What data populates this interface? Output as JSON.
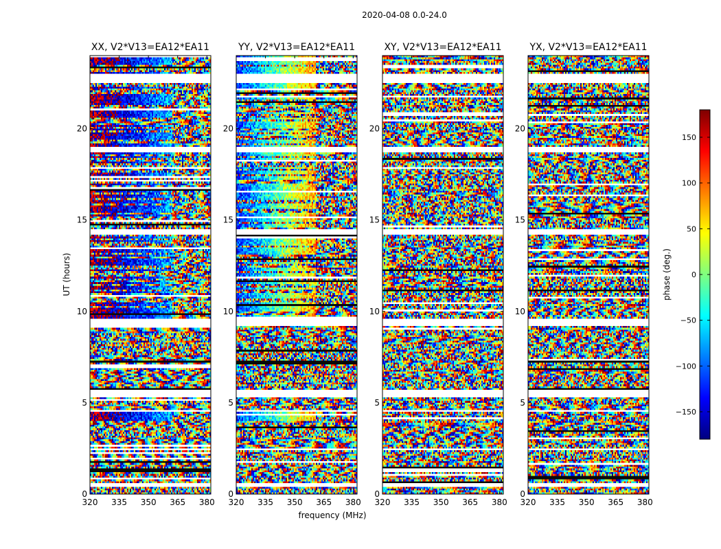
{
  "suptitle": "2020-04-08 0.0-24.0",
  "xlabel": "frequency (MHz)",
  "ylabel": "UT (hours)",
  "colorbar": {
    "label": "phase (deg.)",
    "range": [
      -180,
      180
    ],
    "ticks": [
      150,
      100,
      50,
      0,
      -50,
      -100,
      -150
    ],
    "tick_labels": [
      "150",
      "100",
      "50",
      "0",
      "−50",
      "−100",
      "−150"
    ],
    "colormap": "jet",
    "colors": [
      "#00007f",
      "#0000ff",
      "#007fff",
      "#00ffff",
      "#7fff7f",
      "#ffff00",
      "#ff7f00",
      "#ff0000",
      "#7f0000"
    ]
  },
  "chart_data": [
    {
      "type": "heatmap",
      "title": "XX, V2*V13=EA12*EA11",
      "xlim": [
        320,
        382
      ],
      "ylim": [
        0,
        24
      ],
      "x_ticks": [
        320,
        335,
        350,
        365,
        380
      ],
      "x_tick_labels": [
        "320",
        "335",
        "350",
        "365",
        "380"
      ],
      "y_ticks": [
        0,
        5,
        10,
        15,
        20
      ],
      "y_tick_labels": [
        "0",
        "5",
        "10",
        "15",
        "20"
      ],
      "flagged_ut_ranges": [
        [
          0.45,
          0.6
        ],
        [
          2.4,
          2.5
        ],
        [
          4.45,
          4.6
        ],
        [
          5.3,
          5.7
        ],
        [
          9.15,
          9.6
        ],
        [
          14.2,
          14.5
        ],
        [
          18.75,
          19.0
        ],
        [
          22.5,
          23.0
        ]
      ],
      "coherent_band_mhz": [
        320,
        362
      ],
      "coherent_phase_deg": 160
    },
    {
      "type": "heatmap",
      "title": "YY, V2*V13=EA12*EA11",
      "xlim": [
        320,
        382
      ],
      "ylim": [
        0,
        24
      ],
      "x_ticks": [
        320,
        335,
        350,
        365,
        380
      ],
      "x_tick_labels": [
        "320",
        "335",
        "350",
        "365",
        "380"
      ],
      "y_ticks": [
        0,
        5,
        10,
        15,
        20
      ],
      "y_tick_labels": [
        "0",
        "5",
        "10",
        "15",
        "20"
      ],
      "flagged_ut_ranges": [
        [
          0.45,
          0.6
        ],
        [
          2.4,
          2.5
        ],
        [
          4.45,
          4.6
        ],
        [
          5.3,
          5.7
        ],
        [
          9.15,
          9.6
        ],
        [
          14.2,
          14.5
        ],
        [
          18.75,
          19.0
        ],
        [
          22.5,
          23.0
        ]
      ],
      "coherent_band_mhz": [
        320,
        361
      ],
      "coherent_phase_deg": -120
    },
    {
      "type": "heatmap",
      "title": "XY, V2*V13=EA12*EA11",
      "xlim": [
        320,
        382
      ],
      "ylim": [
        0,
        24
      ],
      "x_ticks": [
        320,
        335,
        350,
        365,
        380
      ],
      "x_tick_labels": [
        "320",
        "335",
        "350",
        "365",
        "380"
      ],
      "y_ticks": [
        0,
        5,
        10,
        15,
        20
      ],
      "y_tick_labels": [
        "0",
        "5",
        "10",
        "15",
        "20"
      ],
      "flagged_ut_ranges": [
        [
          0.45,
          0.6
        ],
        [
          2.4,
          2.5
        ],
        [
          4.45,
          4.6
        ],
        [
          5.3,
          5.7
        ],
        [
          9.15,
          9.6
        ],
        [
          14.2,
          14.5
        ],
        [
          18.75,
          19.0
        ],
        [
          22.5,
          23.0
        ]
      ],
      "coherent_band_mhz": null,
      "coherent_phase_deg": null
    },
    {
      "type": "heatmap",
      "title": "YX, V2*V13=EA12*EA11",
      "xlim": [
        320,
        382
      ],
      "ylim": [
        0,
        24
      ],
      "x_ticks": [
        320,
        335,
        350,
        365,
        380
      ],
      "x_tick_labels": [
        "320",
        "335",
        "350",
        "365",
        "380"
      ],
      "y_ticks": [
        0,
        5,
        10,
        15,
        20
      ],
      "y_tick_labels": [
        "0",
        "5",
        "10",
        "15",
        "20"
      ],
      "flagged_ut_ranges": [
        [
          0.45,
          0.6
        ],
        [
          2.4,
          2.5
        ],
        [
          4.45,
          4.6
        ],
        [
          5.3,
          5.7
        ],
        [
          9.15,
          9.6
        ],
        [
          14.2,
          14.5
        ],
        [
          18.75,
          19.0
        ],
        [
          22.5,
          23.0
        ]
      ],
      "coherent_band_mhz": null,
      "coherent_phase_deg": null
    }
  ]
}
